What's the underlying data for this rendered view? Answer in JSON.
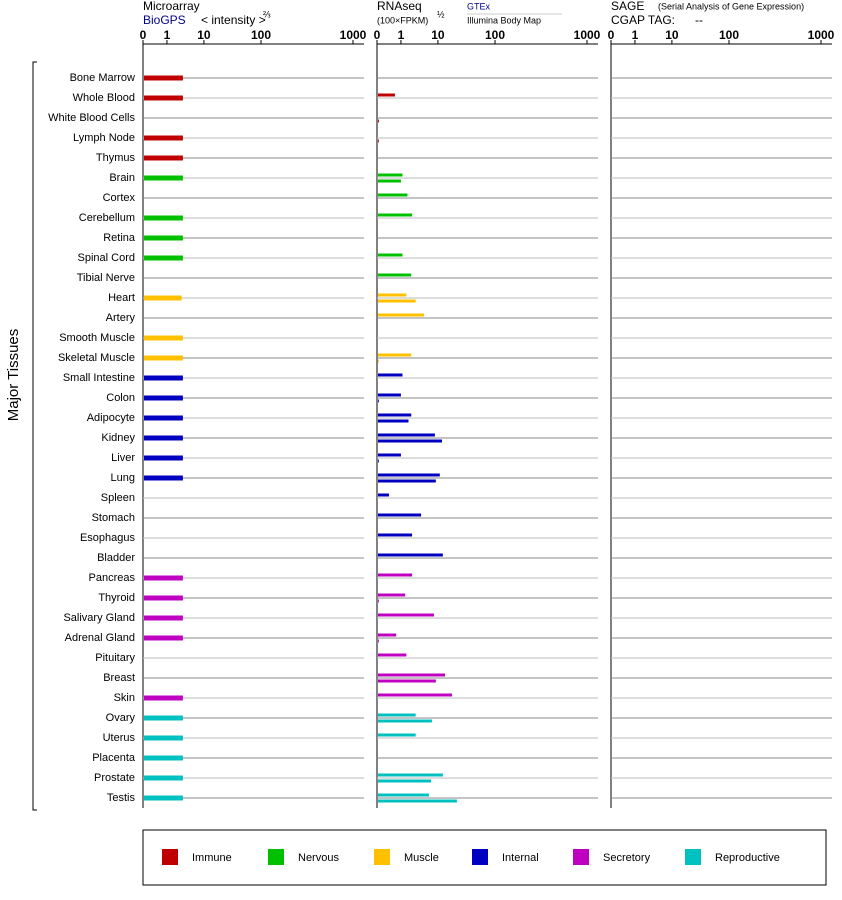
{
  "chart_data": {
    "type": "bar",
    "y_label": "Major Tissues",
    "categories": [
      "Bone Marrow",
      "Whole Blood",
      "White Blood Cells",
      "Lymph Node",
      "Thymus",
      "Brain",
      "Cortex",
      "Cerebellum",
      "Retina",
      "Spinal Cord",
      "Tibial Nerve",
      "Heart",
      "Artery",
      "Smooth Muscle",
      "Skeletal Muscle",
      "Small Intestine",
      "Colon",
      "Adipocyte",
      "Kidney",
      "Liver",
      "Lung",
      "Spleen",
      "Stomach",
      "Esophagus",
      "Bladder",
      "Pancreas",
      "Thyroid",
      "Salivary Gland",
      "Adrenal Gland",
      "Pituitary",
      "Breast",
      "Skin",
      "Ovary",
      "Uterus",
      "Placenta",
      "Prostate",
      "Testis"
    ],
    "colors": [
      "#c00000",
      "#c00000",
      "#c00000",
      "#c00000",
      "#c00000",
      "#00c000",
      "#00c000",
      "#00c000",
      "#00c000",
      "#00c000",
      "#00c000",
      "#ffc000",
      "#ffc000",
      "#ffc000",
      "#ffc000",
      "#0000c0",
      "#0000c0",
      "#0000c0",
      "#0000c0",
      "#0000c0",
      "#0000c0",
      "#0000c0",
      "#0000c0",
      "#0000c0",
      "#0000c0",
      "#c000c0",
      "#c000c0",
      "#c000c0",
      "#c000c0",
      "#c000c0",
      "#c000c0",
      "#c000c0",
      "#00c0c0",
      "#00c0c0",
      "#00c0c0",
      "#00c0c0",
      "#00c0c0"
    ],
    "legend": [
      {
        "name": "Immune",
        "color": "#c00000"
      },
      {
        "name": "Nervous",
        "color": "#00c000"
      },
      {
        "name": "Muscle",
        "color": "#ffc000"
      },
      {
        "name": "Internal",
        "color": "#0000c0"
      },
      {
        "name": "Secretory",
        "color": "#c000c0"
      },
      {
        "name": "Reproductive",
        "color": "#00c0c0"
      }
    ],
    "panels": [
      {
        "title": "Microarray",
        "unit": "< intensity >",
        "exponent": "⅔",
        "xlim": [
          0,
          1000
        ],
        "xticks": [
          0,
          1,
          10,
          100,
          1000
        ],
        "series": [
          {
            "name": "BioGPS",
            "values": [
              2.7,
              2.7,
              null,
              2.7,
              2.7,
              2.7,
              null,
              2.7,
              2.7,
              2.7,
              null,
              2.5,
              null,
              2.7,
              2.7,
              2.7,
              2.7,
              2.7,
              2.7,
              2.7,
              2.7,
              null,
              null,
              null,
              null,
              2.7,
              2.7,
              2.7,
              2.7,
              null,
              null,
              2.7,
              2.7,
              2.7,
              2.7,
              2.7,
              2.7
            ]
          }
        ]
      },
      {
        "title": "RNAseq",
        "unit": "(100×FPKM)",
        "exponent": "½",
        "xlim": [
          0,
          1000
        ],
        "xticks": [
          0,
          1,
          10,
          100,
          1000
        ],
        "series": [
          {
            "name": "GTEx",
            "values": [
              null,
              0.75,
              null,
              null,
              null,
              1.1,
              1.5,
              2,
              null,
              1.1,
              1.9,
              1.4,
              4.2,
              null,
              1.9,
              1.1,
              1,
              1.9,
              8.3,
              1,
              10.8,
              0.5,
              3.5,
              2,
              12.2,
              2,
              1.3,
              7.8,
              0.8,
              1.4,
              13.3,
              17.6,
              2.5,
              2.5,
              null,
              12.2,
              5.7
            ]
          },
          {
            "name": "Illumina Body Map",
            "values": [
              null,
              null,
              0.08,
              0.04,
              null,
              1,
              null,
              null,
              null,
              null,
              null,
              2.5,
              null,
              null,
              0.04,
              null,
              0.04,
              1.6,
              11.8,
              0.04,
              8.8,
              null,
              null,
              null,
              null,
              null,
              0.04,
              null,
              0.04,
              null,
              8.8,
              null,
              6.9,
              null,
              null,
              6.5,
              21.5
            ]
          }
        ]
      },
      {
        "title": "SAGE",
        "subtitle": "(Serial Analysis of Gene Expression)",
        "unit": "CGAP TAG:",
        "tag": "--",
        "xlim": [
          0,
          1000
        ],
        "xticks": [
          0,
          1,
          10,
          100,
          1000
        ],
        "series": []
      }
    ]
  }
}
